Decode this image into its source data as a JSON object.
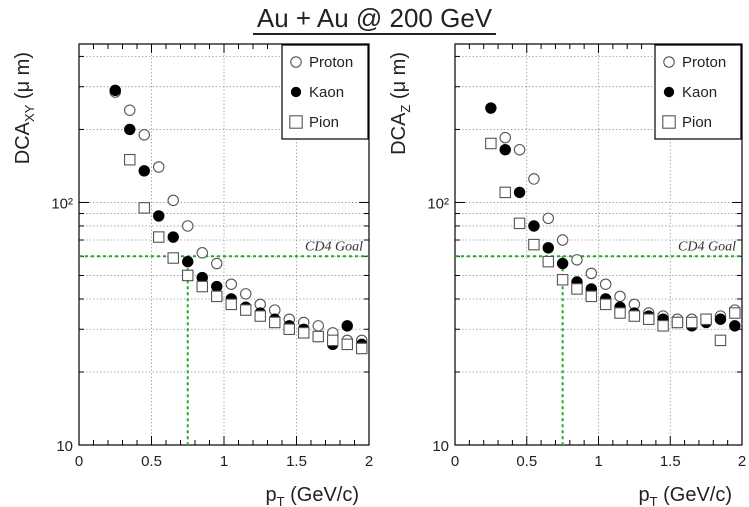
{
  "title": "Au + Au @ 200 GeV",
  "colors": {
    "goal_line": "#22aa22",
    "text": "#222222",
    "marker": "#000000"
  },
  "chart_data": [
    {
      "type": "scatter",
      "xlabel": "pT (GeV/c)",
      "xlabel_main": "p",
      "xlabel_sub": "T",
      "xlabel_rest": " (GeV/c)",
      "ylabel": "DCAXY (μ m)",
      "ylabel_main": "DCA",
      "ylabel_sub": "XY",
      "ylabel_rest": " (μ m)",
      "xlim": [
        0,
        2
      ],
      "ylim": [
        10,
        450
      ],
      "yscale": "log",
      "x_ticks": [
        "0",
        "0.5",
        "1",
        "1.5",
        "2"
      ],
      "y_ticks": [
        "10",
        "10²"
      ],
      "grid": true,
      "legend_position": "top-right",
      "goal": {
        "label": "CD4 Goal",
        "x": 0.75,
        "y": 60
      },
      "series": [
        {
          "name": "Proton",
          "marker": "open-circle",
          "x": [
            0.25,
            0.35,
            0.45,
            0.55,
            0.65,
            0.75,
            0.85,
            0.95,
            1.05,
            1.15,
            1.25,
            1.35,
            1.45,
            1.55,
            1.65,
            1.75,
            1.85,
            1.95
          ],
          "y": [
            285,
            240,
            190,
            140,
            102,
            80,
            62,
            56,
            46,
            42,
            38,
            36,
            33,
            32,
            31,
            29,
            27,
            27
          ]
        },
        {
          "name": "Kaon",
          "marker": "filled-circle",
          "x": [
            0.25,
            0.35,
            0.45,
            0.55,
            0.65,
            0.75,
            0.85,
            0.95,
            1.05,
            1.15,
            1.25,
            1.35,
            1.45,
            1.55,
            1.65,
            1.75,
            1.85,
            1.95
          ],
          "y": [
            290,
            200,
            135,
            88,
            72,
            57,
            49,
            45,
            40,
            37,
            35,
            33,
            31,
            30,
            28,
            26,
            31,
            26
          ]
        },
        {
          "name": "Pion",
          "marker": "open-square",
          "x": [
            0.35,
            0.45,
            0.55,
            0.65,
            0.75,
            0.85,
            0.95,
            1.05,
            1.15,
            1.25,
            1.35,
            1.45,
            1.55,
            1.65,
            1.75,
            1.85,
            1.95
          ],
          "y": [
            150,
            95,
            72,
            59,
            50,
            45,
            41,
            38,
            36,
            34,
            32,
            30,
            29,
            28,
            27,
            26,
            25
          ]
        }
      ]
    },
    {
      "type": "scatter",
      "xlabel": "pT (GeV/c)",
      "xlabel_main": "p",
      "xlabel_sub": "T",
      "xlabel_rest": " (GeV/c)",
      "ylabel": "DCAZ (μ m)",
      "ylabel_main": "DCA",
      "ylabel_sub": "Z",
      "ylabel_rest": " (μ m)",
      "xlim": [
        0,
        2
      ],
      "ylim": [
        10,
        450
      ],
      "yscale": "log",
      "x_ticks": [
        "0",
        "0.5",
        "1",
        "1.5",
        "2"
      ],
      "y_ticks": [
        "10",
        "10²"
      ],
      "grid": true,
      "legend_position": "top-right",
      "goal": {
        "label": "CD4 Goal",
        "x": 0.75,
        "y": 60
      },
      "series": [
        {
          "name": "Proton",
          "marker": "open-circle",
          "x": [
            0.35,
            0.45,
            0.55,
            0.65,
            0.75,
            0.85,
            0.95,
            1.05,
            1.15,
            1.25,
            1.35,
            1.45,
            1.55,
            1.65,
            1.75,
            1.85,
            1.95
          ],
          "y": [
            185,
            165,
            125,
            86,
            70,
            58,
            51,
            46,
            41,
            38,
            35,
            34,
            33,
            33,
            33,
            34,
            36
          ]
        },
        {
          "name": "Kaon",
          "marker": "filled-circle",
          "x": [
            0.25,
            0.35,
            0.45,
            0.55,
            0.65,
            0.75,
            0.85,
            0.95,
            1.05,
            1.15,
            1.25,
            1.35,
            1.45,
            1.55,
            1.65,
            1.75,
            1.85,
            1.95
          ],
          "y": [
            245,
            165,
            110,
            80,
            65,
            56,
            47,
            44,
            40,
            37,
            35,
            34,
            33,
            32,
            31,
            32,
            33,
            31
          ]
        },
        {
          "name": "Pion",
          "marker": "open-square",
          "x": [
            0.25,
            0.35,
            0.45,
            0.55,
            0.65,
            0.75,
            0.85,
            0.95,
            1.05,
            1.15,
            1.25,
            1.35,
            1.45,
            1.55,
            1.65,
            1.75,
            1.85,
            1.95
          ],
          "y": [
            175,
            110,
            82,
            67,
            57,
            48,
            44,
            41,
            38,
            35,
            34,
            33,
            31,
            32,
            32,
            33,
            27,
            35
          ]
        }
      ]
    }
  ]
}
